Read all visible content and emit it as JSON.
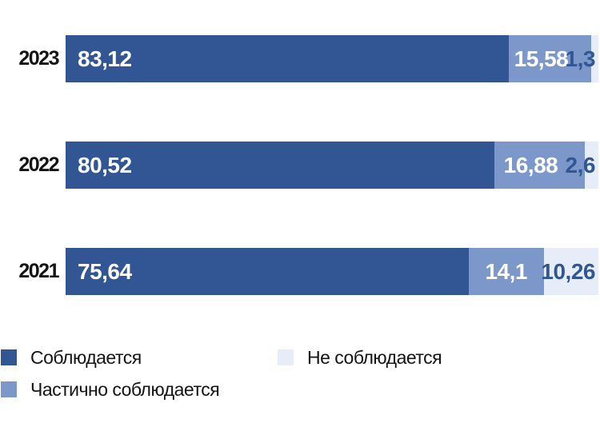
{
  "chart_data": {
    "type": "bar",
    "orientation": "horizontal",
    "stacked": true,
    "value_unit": "percent",
    "xlim": [
      0,
      100
    ],
    "grid": false,
    "legend_position": "bottom",
    "categories": [
      "2023",
      "2022",
      "2021"
    ],
    "series": [
      {
        "name": "Соблюдается",
        "color": "#325694",
        "label_color": "#ffffff",
        "values": [
          83.12,
          80.52,
          75.64
        ],
        "labels": [
          "83,12",
          "80,52",
          "75,64"
        ]
      },
      {
        "name": "Частично соблюдается",
        "color": "#7C97CA",
        "label_color": "#ffffff",
        "values": [
          15.58,
          16.88,
          14.1
        ],
        "labels": [
          "15,58",
          "16,88",
          "14,1"
        ]
      },
      {
        "name": "Не соблюдается",
        "color": "#E6EDF8",
        "label_color": "#325694",
        "values": [
          1.3,
          2.6,
          10.26
        ],
        "labels": [
          "1,3",
          "2,6",
          "10,26"
        ]
      }
    ]
  },
  "legend": {
    "items": [
      {
        "label": "Соблюдается",
        "color": "#325694"
      },
      {
        "label": "Не соблюдается",
        "color": "#E6EDF8"
      },
      {
        "label": "Частично соблюдается",
        "color": "#7C97CA"
      }
    ]
  }
}
